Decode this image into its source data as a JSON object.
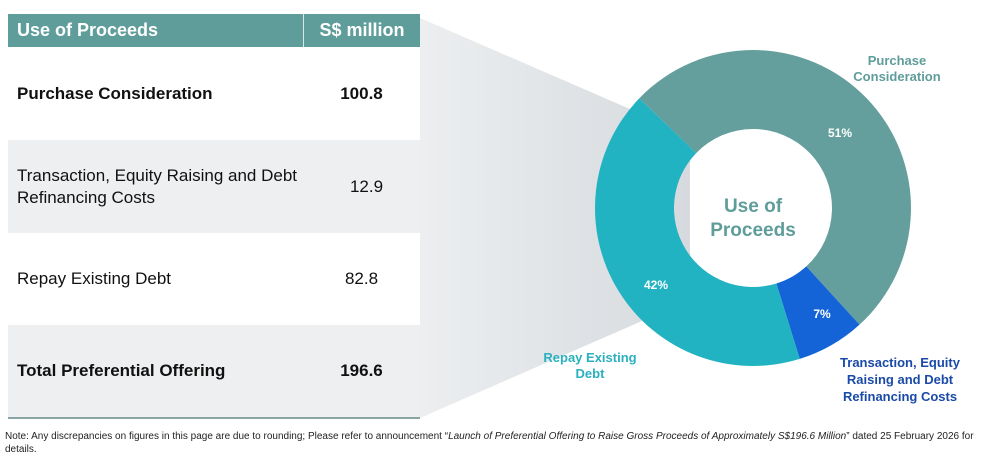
{
  "table": {
    "headers": [
      "Use of Proceeds",
      "S$ million"
    ],
    "rows": [
      {
        "label": "Purchase Consideration",
        "value": "100.8",
        "bold": true
      },
      {
        "label": "Transaction, Equity Raising and Debt Refinancing Costs",
        "value": "12.9",
        "bold": false
      },
      {
        "label": "Repay Existing Debt",
        "value": "82.8",
        "bold": false
      },
      {
        "label": "Total Preferential Offering",
        "value": "196.6",
        "bold": true
      }
    ]
  },
  "chart_data": {
    "type": "pie",
    "variant": "donut",
    "center_label": "Use of Proceeds",
    "slices": [
      {
        "name": "Purchase Consideration",
        "value": 51,
        "label": "51%",
        "color": "#659f9d"
      },
      {
        "name": "Transaction, Equity Raising and Debt Refinancing Costs",
        "value": 7,
        "label": "7%",
        "color": "#1464d8"
      },
      {
        "name": "Repay Existing Debt",
        "value": 42,
        "label": "42%",
        "color": "#22b3c2"
      }
    ],
    "label_colors": {
      "Purchase Consideration": "#5f9d9a",
      "Transaction, Equity Raising and Debt Refinancing Costs": "#1a4aa8",
      "Repay Existing Debt": "#2ab0bf"
    }
  },
  "note": {
    "prefix": "Note: Any discrepancies on figures in this page are due to rounding; Please refer to announcement “",
    "title": "Launch of Preferential Offering to Raise Gross Proceeds of Approximately S$196.6 Million",
    "suffix": "” dated 25 February 2026 for details."
  }
}
